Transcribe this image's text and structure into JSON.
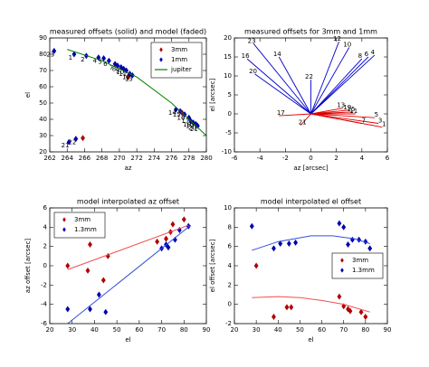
{
  "chart_data": [
    {
      "type": "scatter",
      "title": "measured offsets (solid) and model (faded)",
      "x_label": "az",
      "y_label": "el",
      "xlim": [
        262,
        280
      ],
      "xticks": [
        262,
        264,
        266,
        268,
        270,
        272,
        274,
        276,
        278,
        280
      ],
      "ylim": [
        20,
        90
      ],
      "yticks": [
        20,
        30,
        40,
        50,
        60,
        70,
        80,
        90
      ],
      "legend": "upper right",
      "series": [
        {
          "name": "3mm",
          "color": "#b00000",
          "x": [
            265.8,
            271.0,
            277.2
          ],
          "values": [
            28.5,
            66.0,
            44.0
          ]
        },
        {
          "name": "1mm",
          "color": "#0000b0",
          "x": [
            262.5,
            264.8,
            266.2,
            267.6,
            268.2,
            268.8,
            269.5,
            269.8,
            270.2,
            270.5,
            270.8,
            271.2,
            271.5,
            276.5,
            277.0,
            277.5,
            278.0,
            278.2,
            278.5,
            278.8,
            279.0,
            265.0,
            264.2
          ],
          "values": [
            82,
            80,
            79,
            78,
            77.5,
            76,
            74,
            73,
            72,
            71,
            70,
            68,
            67,
            46,
            45,
            43,
            41,
            39,
            38,
            37,
            36,
            28,
            26
          ],
          "labels": [
            "23",
            "1",
            "2",
            "4",
            "5",
            "6",
            "7",
            "8",
            "9",
            "10",
            "11",
            "12",
            "13",
            "14",
            "15",
            "16",
            "17",
            "18",
            "19",
            "20",
            "21",
            "22",
            "21"
          ]
        },
        {
          "name": "jupiter",
          "type": "line",
          "color": "#008000",
          "x": [
            264,
            268,
            272,
            276,
            278,
            280
          ],
          "values": [
            83,
            76,
            66,
            50,
            40,
            30
          ]
        }
      ]
    },
    {
      "type": "quiver",
      "title": "measured offsets for 3mm and 1mm",
      "x_label": "az [arcsec]",
      "y_label": "el [arcsec]",
      "xlim": [
        -6,
        6
      ],
      "xticks": [
        -6,
        -4,
        -2,
        0,
        2,
        4,
        6
      ],
      "ylim": [
        -10,
        20
      ],
      "yticks": [
        -10,
        -5,
        0,
        5,
        10,
        15,
        20
      ],
      "series": [
        {
          "color": "#0000cc",
          "x": [
            -4.5,
            -5,
            -2.5,
            -4.4,
            2.2,
            3,
            4,
            4.5,
            5,
            0
          ],
          "values": [
            18.5,
            14.5,
            15,
            10.5,
            19,
            17.5,
            14.5,
            15,
            15.5,
            9
          ],
          "labels": [
            "23",
            "16",
            "14",
            "20",
            "12",
            "10",
            "8",
            "6",
            "4",
            "22"
          ]
        },
        {
          "color": "#dd0000",
          "x": [
            2.5,
            3,
            3.3,
            3.5,
            5,
            5.3,
            5.6,
            4,
            -2.5,
            -0.8
          ],
          "values": [
            1.5,
            1,
            0.5,
            0,
            -1,
            -2.5,
            -3.5,
            -2.5,
            -0.5,
            -3
          ],
          "labels": [
            "13",
            "19",
            "15",
            "11",
            "5",
            "3",
            "1",
            "7",
            "17",
            "21"
          ]
        }
      ]
    },
    {
      "type": "scatter",
      "title": "model interpolated az offset",
      "x_label": "el",
      "y_label": "az offset [arcsec]",
      "xlim": [
        20,
        90
      ],
      "xticks": [
        20,
        30,
        40,
        50,
        60,
        70,
        80,
        90
      ],
      "ylim": [
        -6,
        6
      ],
      "yticks": [
        -6,
        -4,
        -2,
        0,
        2,
        4,
        6
      ],
      "legend": "upper left",
      "series": [
        {
          "name": "3mm",
          "color": "#b00000",
          "x": [
            28,
            38,
            37,
            44,
            46,
            68,
            72,
            74,
            75,
            80,
            82
          ],
          "values": [
            0,
            2.2,
            -0.5,
            -1.5,
            1,
            2.5,
            2.8,
            3.5,
            4.3,
            4.8,
            4.1
          ]
        },
        {
          "name": "1.3mm",
          "color": "#0000b0",
          "x": [
            28,
            38,
            42,
            45,
            70,
            72,
            73,
            76,
            78,
            82
          ],
          "values": [
            -4.5,
            -4.5,
            -3,
            -4.8,
            1.8,
            2.2,
            1.9,
            2.7,
            3.7,
            4.1
          ]
        },
        {
          "type": "line",
          "color": "#f05050",
          "x": [
            28,
            82
          ],
          "values": [
            -0.4,
            4.2
          ]
        },
        {
          "type": "line",
          "color": "#3050e0",
          "x": [
            28,
            83
          ],
          "values": [
            -6,
            4.2
          ]
        }
      ]
    },
    {
      "type": "scatter",
      "title": "model interpolated el offset",
      "x_label": "el",
      "y_label": "el offset [arcsec]",
      "xlim": [
        20,
        90
      ],
      "xticks": [
        20,
        30,
        40,
        50,
        60,
        70,
        80,
        90
      ],
      "ylim": [
        -2,
        10
      ],
      "yticks": [
        -2,
        0,
        2,
        4,
        6,
        8,
        10
      ],
      "legend": "center right",
      "series": [
        {
          "name": "3mm",
          "color": "#b00000",
          "x": [
            30,
            38,
            44,
            46,
            68,
            70,
            72,
            73,
            78,
            80
          ],
          "values": [
            4,
            -1.3,
            -0.3,
            -0.3,
            0.8,
            -0.2,
            -0.5,
            -0.7,
            -0.8,
            -1.3
          ]
        },
        {
          "name": "1.3mm",
          "color": "#0000b0",
          "x": [
            28,
            38,
            41,
            45,
            48,
            68,
            70,
            72,
            74,
            77,
            80,
            82
          ],
          "values": [
            8.1,
            5.8,
            6.3,
            6.3,
            6.4,
            8.4,
            8,
            6.2,
            6.7,
            6.7,
            6.5,
            5.8
          ]
        },
        {
          "type": "line",
          "color": "#3050e0",
          "x": [
            28,
            40,
            55,
            65,
            75,
            82
          ],
          "values": [
            5.6,
            6.5,
            7.1,
            7.1,
            6.8,
            6.3
          ]
        },
        {
          "type": "line",
          "color": "#f05050",
          "x": [
            28,
            40,
            50,
            60,
            70,
            82
          ],
          "values": [
            0.7,
            0.8,
            0.7,
            0.4,
            0,
            -0.8
          ]
        }
      ]
    }
  ]
}
